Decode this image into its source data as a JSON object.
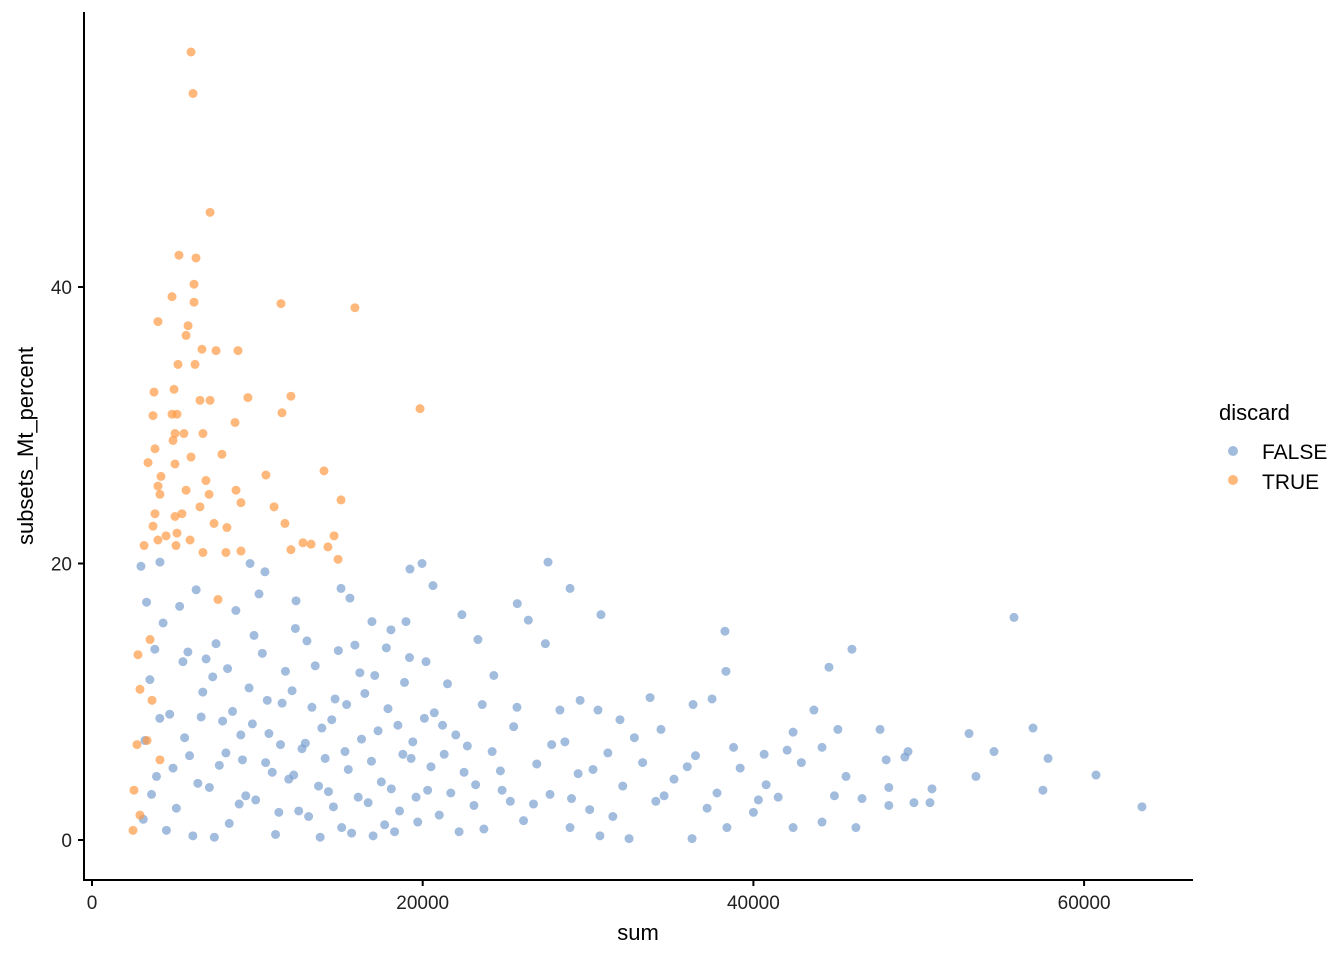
{
  "chart_data": {
    "type": "scatter",
    "title": "",
    "xlabel": "sum",
    "ylabel": "subsets_Mt_percent",
    "xlim": [
      -1000,
      66500
    ],
    "ylim": [
      -2.8,
      60
    ],
    "xticks": [
      "0",
      "20000",
      "40000",
      "60000"
    ],
    "xtick_values": [
      0,
      20000,
      40000,
      60000
    ],
    "yticks": [
      "0",
      "20",
      "40"
    ],
    "ytick_values": [
      0,
      20,
      40
    ],
    "grid": false,
    "legend": {
      "title": "discard",
      "placement": "right"
    },
    "series": [
      {
        "name": "FALSE",
        "color": "#7a9fd0",
        "points": [
          [
            63500,
            2.4
          ],
          [
            60720,
            4.7
          ],
          [
            57510,
            3.6
          ],
          [
            57820,
            5.9
          ],
          [
            55760,
            16.1
          ],
          [
            56910,
            8.1
          ],
          [
            54550,
            6.4
          ],
          [
            53460,
            4.6
          ],
          [
            53040,
            7.7
          ],
          [
            50800,
            3.7
          ],
          [
            50680,
            2.7
          ],
          [
            49710,
            2.7
          ],
          [
            49350,
            6.4
          ],
          [
            49160,
            6.0
          ],
          [
            48030,
            5.8
          ],
          [
            47660,
            8.0
          ],
          [
            48190,
            3.8
          ],
          [
            48190,
            2.5
          ],
          [
            46570,
            3.0
          ],
          [
            46200,
            0.9
          ],
          [
            45960,
            13.8
          ],
          [
            45600,
            4.6
          ],
          [
            44570,
            12.5
          ],
          [
            44150,
            1.3
          ],
          [
            44150,
            6.7
          ],
          [
            43660,
            9.4
          ],
          [
            45110,
            8.0
          ],
          [
            42400,
            0.9
          ],
          [
            42400,
            7.8
          ],
          [
            42040,
            6.5
          ],
          [
            40770,
            4.0
          ],
          [
            40650,
            6.2
          ],
          [
            40000,
            2.0
          ],
          [
            38400,
            0.9
          ],
          [
            38280,
            15.1
          ],
          [
            38340,
            12.2
          ],
          [
            37500,
            10.2
          ],
          [
            36350,
            9.8
          ],
          [
            36290,
            0.1
          ],
          [
            34410,
            8.0
          ],
          [
            32480,
            0.1
          ],
          [
            30780,
            16.3
          ],
          [
            28910,
            18.2
          ],
          [
            27580,
            20.1
          ],
          [
            25720,
            17.1
          ],
          [
            26390,
            15.9
          ],
          [
            27420,
            14.2
          ],
          [
            23340,
            14.5
          ],
          [
            22370,
            16.3
          ],
          [
            20620,
            18.4
          ],
          [
            19960,
            20.0
          ],
          [
            19230,
            19.6
          ],
          [
            18990,
            15.8
          ],
          [
            18080,
            15.2
          ],
          [
            16930,
            15.8
          ],
          [
            15600,
            17.5
          ],
          [
            15060,
            18.2
          ],
          [
            12340,
            17.3
          ],
          [
            9560,
            20.0
          ],
          [
            10460,
            19.4
          ],
          [
            4110,
            20.1
          ],
          [
            2960,
            19.8
          ],
          [
            30720,
            0.3
          ],
          [
            28910,
            0.9
          ],
          [
            28300,
            9.4
          ],
          [
            29520,
            10.1
          ],
          [
            33750,
            10.3
          ],
          [
            31930,
            8.7
          ],
          [
            30600,
            9.4
          ],
          [
            41500,
            3.1
          ],
          [
            39200,
            5.2
          ],
          [
            37800,
            3.4
          ],
          [
            36500,
            6.1
          ],
          [
            35200,
            4.4
          ],
          [
            34100,
            2.8
          ],
          [
            33300,
            5.6
          ],
          [
            32100,
            3.9
          ],
          [
            31200,
            6.3
          ],
          [
            30100,
            2.2
          ],
          [
            29400,
            4.8
          ],
          [
            28600,
            7.1
          ],
          [
            27700,
            3.3
          ],
          [
            26900,
            5.5
          ],
          [
            26100,
            1.4
          ],
          [
            25500,
            8.2
          ],
          [
            24800,
            3.6
          ],
          [
            24200,
            6.4
          ],
          [
            23600,
            9.8
          ],
          [
            23100,
            2.5
          ],
          [
            22500,
            4.9
          ],
          [
            22000,
            7.6
          ],
          [
            21500,
            11.3
          ],
          [
            21000,
            1.8
          ],
          [
            20500,
            5.3
          ],
          [
            20100,
            8.8
          ],
          [
            19600,
            3.1
          ],
          [
            19200,
            13.2
          ],
          [
            18800,
            6.2
          ],
          [
            18300,
            0.6
          ],
          [
            17900,
            9.5
          ],
          [
            17500,
            4.2
          ],
          [
            17100,
            11.9
          ],
          [
            16700,
            2.7
          ],
          [
            16300,
            7.3
          ],
          [
            15900,
            14.1
          ],
          [
            15500,
            5.1
          ],
          [
            15100,
            0.9
          ],
          [
            14700,
            10.2
          ],
          [
            14300,
            3.5
          ],
          [
            13900,
            8.1
          ],
          [
            13500,
            12.6
          ],
          [
            13100,
            1.7
          ],
          [
            12700,
            6.6
          ],
          [
            12300,
            15.3
          ],
          [
            11900,
            4.4
          ],
          [
            11500,
            9.9
          ],
          [
            11100,
            0.4
          ],
          [
            10700,
            7.7
          ],
          [
            10300,
            13.5
          ],
          [
            9900,
            2.9
          ],
          [
            9500,
            11.0
          ],
          [
            9100,
            5.8
          ],
          [
            8700,
            16.6
          ],
          [
            8300,
            1.2
          ],
          [
            7900,
            8.6
          ],
          [
            7500,
            14.2
          ],
          [
            7100,
            3.8
          ],
          [
            6700,
            10.7
          ],
          [
            6300,
            18.1
          ],
          [
            5900,
            6.1
          ],
          [
            5500,
            12.9
          ],
          [
            5100,
            2.3
          ],
          [
            4700,
            9.1
          ],
          [
            4300,
            15.7
          ],
          [
            3900,
            4.6
          ],
          [
            3500,
            11.6
          ],
          [
            3200,
            7.2
          ],
          [
            3100,
            1.5
          ],
          [
            3300,
            17.2
          ],
          [
            3800,
            13.8
          ],
          [
            4500,
            0.7
          ],
          [
            5300,
            16.9
          ],
          [
            6100,
            0.3
          ],
          [
            6900,
            13.1
          ],
          [
            7700,
            5.4
          ],
          [
            8500,
            9.3
          ],
          [
            9300,
            3.2
          ],
          [
            10100,
            17.8
          ],
          [
            10900,
            4.9
          ],
          [
            11700,
            12.2
          ],
          [
            12500,
            2.1
          ],
          [
            13300,
            9.6
          ],
          [
            14100,
            5.9
          ],
          [
            14900,
            13.7
          ],
          [
            15700,
            0.5
          ],
          [
            16500,
            10.6
          ],
          [
            17300,
            7.9
          ],
          [
            18100,
            3.7
          ],
          [
            18900,
            11.4
          ],
          [
            19700,
            1.3
          ],
          [
            20700,
            9.2
          ],
          [
            21700,
            3.4
          ],
          [
            22700,
            6.8
          ],
          [
            23700,
            0.8
          ],
          [
            24700,
            5.0
          ],
          [
            25700,
            9.6
          ],
          [
            26700,
            2.6
          ],
          [
            27800,
            6.9
          ],
          [
            29000,
            3.0
          ],
          [
            30300,
            5.1
          ],
          [
            31500,
            1.7
          ],
          [
            32800,
            7.4
          ],
          [
            34600,
            3.2
          ],
          [
            36000,
            5.3
          ],
          [
            37200,
            2.3
          ],
          [
            38800,
            6.7
          ],
          [
            40300,
            2.9
          ],
          [
            42900,
            5.6
          ],
          [
            44900,
            3.2
          ],
          [
            5600,
            7.4
          ],
          [
            6400,
            4.1
          ],
          [
            7300,
            11.8
          ],
          [
            8100,
            6.3
          ],
          [
            8900,
            2.6
          ],
          [
            9700,
            8.4
          ],
          [
            10500,
            5.6
          ],
          [
            11300,
            2.0
          ],
          [
            12100,
            10.8
          ],
          [
            12900,
            7.0
          ],
          [
            13700,
            3.9
          ],
          [
            14500,
            8.7
          ],
          [
            15300,
            6.4
          ],
          [
            16100,
            3.1
          ],
          [
            16900,
            5.7
          ],
          [
            17700,
            1.1
          ],
          [
            18500,
            8.3
          ],
          [
            19300,
            5.9
          ],
          [
            20300,
            3.6
          ],
          [
            21300,
            6.2
          ],
          [
            4900,
            5.2
          ],
          [
            4100,
            8.8
          ],
          [
            3600,
            3.3
          ],
          [
            5800,
            13.6
          ],
          [
            6600,
            8.9
          ],
          [
            7400,
            0.2
          ],
          [
            8200,
            12.4
          ],
          [
            9000,
            7.6
          ],
          [
            9800,
            14.8
          ],
          [
            10600,
            10.1
          ],
          [
            11400,
            6.9
          ],
          [
            12200,
            4.7
          ],
          [
            13000,
            14.4
          ],
          [
            13800,
            0.2
          ],
          [
            14600,
            2.4
          ],
          [
            15400,
            9.8
          ],
          [
            16200,
            12.1
          ],
          [
            17000,
            0.3
          ],
          [
            17800,
            13.9
          ],
          [
            18600,
            2.1
          ],
          [
            19400,
            7.1
          ],
          [
            20200,
            12.9
          ],
          [
            21200,
            8.3
          ],
          [
            22200,
            0.6
          ],
          [
            23200,
            4.0
          ],
          [
            24300,
            11.9
          ],
          [
            25300,
            2.8
          ]
        ]
      },
      {
        "name": "TRUE",
        "color": "#ff9a45",
        "points": [
          [
            5990,
            57.0
          ],
          [
            6110,
            54.0
          ],
          [
            7140,
            45.4
          ],
          [
            5260,
            42.3
          ],
          [
            6290,
            42.1
          ],
          [
            6170,
            40.2
          ],
          [
            4840,
            39.3
          ],
          [
            6170,
            38.9
          ],
          [
            11430,
            38.8
          ],
          [
            15900,
            38.5
          ],
          [
            3990,
            37.5
          ],
          [
            5810,
            37.2
          ],
          [
            5690,
            36.5
          ],
          [
            6650,
            35.5
          ],
          [
            7500,
            35.4
          ],
          [
            8830,
            35.4
          ],
          [
            5200,
            34.4
          ],
          [
            6230,
            34.4
          ],
          [
            3750,
            32.4
          ],
          [
            4960,
            32.6
          ],
          [
            12030,
            32.1
          ],
          [
            9430,
            32.0
          ],
          [
            6530,
            31.8
          ],
          [
            7140,
            31.8
          ],
          [
            19840,
            31.2
          ],
          [
            11490,
            30.9
          ],
          [
            3690,
            30.7
          ],
          [
            4840,
            30.8
          ],
          [
            5140,
            30.8
          ],
          [
            8650,
            30.2
          ],
          [
            6710,
            29.4
          ],
          [
            5020,
            29.4
          ],
          [
            5560,
            29.4
          ],
          [
            4900,
            28.9
          ],
          [
            3810,
            28.3
          ],
          [
            7860,
            27.9
          ],
          [
            5990,
            27.7
          ],
          [
            5020,
            27.2
          ],
          [
            3390,
            27.3
          ],
          [
            10520,
            26.4
          ],
          [
            14030,
            26.7
          ],
          [
            4170,
            26.3
          ],
          [
            6890,
            26.0
          ],
          [
            3990,
            25.6
          ],
          [
            5690,
            25.3
          ],
          [
            8710,
            25.3
          ],
          [
            7080,
            25.0
          ],
          [
            4110,
            25.0
          ],
          [
            9010,
            24.4
          ],
          [
            11010,
            24.1
          ],
          [
            15060,
            24.6
          ],
          [
            6530,
            24.1
          ],
          [
            3810,
            23.6
          ],
          [
            5020,
            23.4
          ],
          [
            5440,
            23.6
          ],
          [
            7380,
            22.9
          ],
          [
            3690,
            22.7
          ],
          [
            11670,
            22.9
          ],
          [
            8160,
            22.6
          ],
          [
            5140,
            22.2
          ],
          [
            4480,
            22.0
          ],
          [
            14640,
            22.0
          ],
          [
            3150,
            21.3
          ],
          [
            3990,
            21.7
          ],
          [
            5080,
            21.3
          ],
          [
            5930,
            21.7
          ],
          [
            12760,
            21.5
          ],
          [
            13250,
            21.4
          ],
          [
            14270,
            21.2
          ],
          [
            12030,
            21.0
          ],
          [
            9010,
            20.9
          ],
          [
            8100,
            20.8
          ],
          [
            6710,
            20.8
          ],
          [
            14880,
            20.3
          ],
          [
            2780,
            13.4
          ],
          [
            2900,
            10.9
          ],
          [
            2720,
            6.9
          ],
          [
            2540,
            3.6
          ],
          [
            2480,
            0.7
          ],
          [
            2900,
            1.8
          ],
          [
            3630,
            10.1
          ],
          [
            3330,
            7.2
          ],
          [
            4110,
            5.8
          ],
          [
            7620,
            17.4
          ],
          [
            3510,
            14.5
          ]
        ]
      }
    ]
  }
}
